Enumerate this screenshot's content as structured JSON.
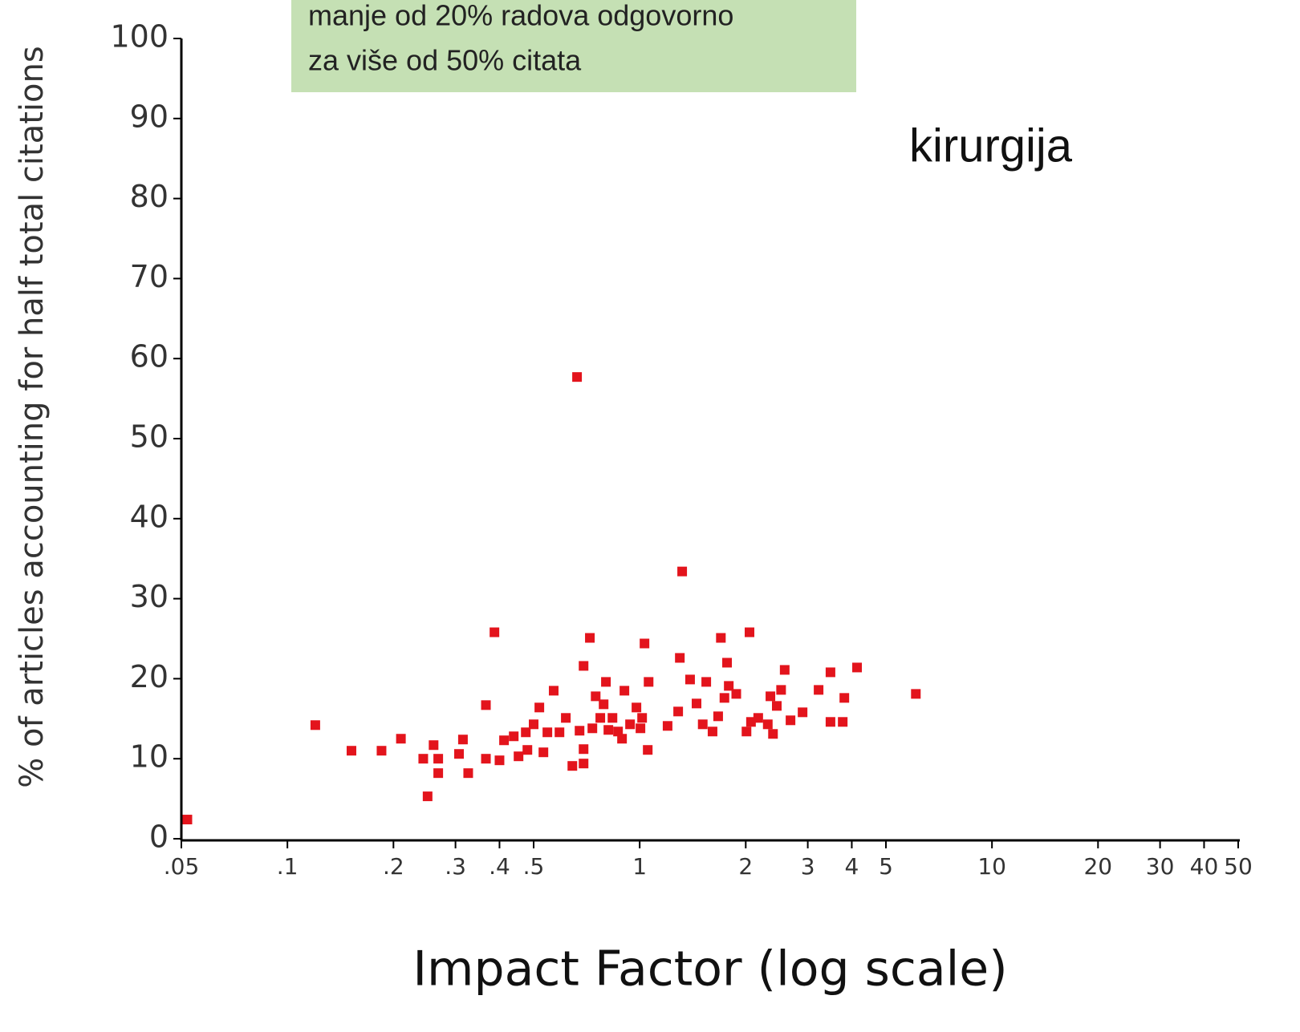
{
  "chart_data": {
    "type": "scatter",
    "annotation": [
      "manje od 20% radova odgovorno",
      "za više od 50% citata"
    ],
    "label": "kirurgija",
    "xlabel": "Impact Factor (log scale)",
    "ylabel": "% of articles accounting for half total citations",
    "xscale": "log",
    "xlim": [
      0.05,
      50
    ],
    "ylim": [
      0,
      100
    ],
    "xticks": [
      {
        "value": 0.05,
        "label": ".05"
      },
      {
        "value": 0.1,
        "label": ".1"
      },
      {
        "value": 0.2,
        "label": ".2"
      },
      {
        "value": 0.3,
        "label": ".3"
      },
      {
        "value": 0.4,
        "label": ".4"
      },
      {
        "value": 0.5,
        "label": ".5"
      },
      1,
      2,
      3,
      4,
      5,
      10,
      20,
      30,
      40,
      50
    ],
    "yticks": [
      0,
      10,
      20,
      30,
      40,
      50,
      60,
      70,
      80,
      90,
      100
    ],
    "color": "#e3141c",
    "x": [
      0.052,
      0.12,
      0.152,
      0.185,
      0.21,
      0.243,
      0.26,
      0.25,
      0.268,
      0.268,
      0.307,
      0.315,
      0.326,
      0.366,
      0.366,
      0.387,
      0.4,
      0.412,
      0.439,
      0.453,
      0.475,
      0.48,
      0.5,
      0.519,
      0.533,
      0.547,
      0.57,
      0.592,
      0.617,
      0.644,
      0.664,
      0.675,
      0.693,
      0.693,
      0.693,
      0.722,
      0.734,
      0.75,
      0.773,
      0.79,
      0.802,
      0.815,
      0.837,
      0.868,
      0.891,
      0.905,
      0.939,
      0.979,
      1.005,
      1.016,
      1.032,
      1.054,
      1.06,
      1.2,
      1.286,
      1.3,
      1.32,
      1.39,
      1.45,
      1.51,
      1.545,
      1.61,
      1.67,
      1.7,
      1.74,
      1.77,
      1.79,
      1.88,
      2.01,
      2.05,
      2.07,
      2.17,
      2.31,
      2.35,
      2.39,
      2.45,
      2.52,
      2.58,
      2.68,
      2.9,
      3.22,
      3.48,
      3.48,
      3.77,
      3.81,
      4.14,
      6.08
    ],
    "values": [
      2.4,
      14.2,
      11,
      11,
      12.5,
      10,
      11.7,
      5.3,
      10,
      8.2,
      10.6,
      12.4,
      8.2,
      16.7,
      10,
      25.8,
      9.8,
      12.3,
      12.8,
      10.3,
      13.3,
      11.1,
      14.3,
      16.4,
      10.8,
      13.3,
      18.5,
      13.3,
      15.1,
      9.1,
      57.7,
      13.5,
      9.4,
      11.2,
      21.6,
      25.1,
      13.8,
      17.8,
      15.1,
      16.8,
      19.6,
      13.6,
      15.1,
      13.4,
      12.5,
      18.5,
      14.3,
      16.4,
      13.8,
      15.1,
      24.4,
      11.1,
      19.6,
      14.1,
      15.9,
      22.6,
      33.4,
      19.9,
      16.9,
      14.3,
      19.6,
      13.4,
      15.3,
      25.1,
      17.6,
      22,
      19.1,
      18.1,
      13.4,
      25.8,
      14.6,
      15.1,
      14.3,
      17.8,
      13.1,
      16.6,
      18.6,
      21.1,
      14.8,
      15.8,
      18.6,
      20.8,
      14.6,
      14.6,
      17.6,
      21.4,
      18.1
    ]
  }
}
